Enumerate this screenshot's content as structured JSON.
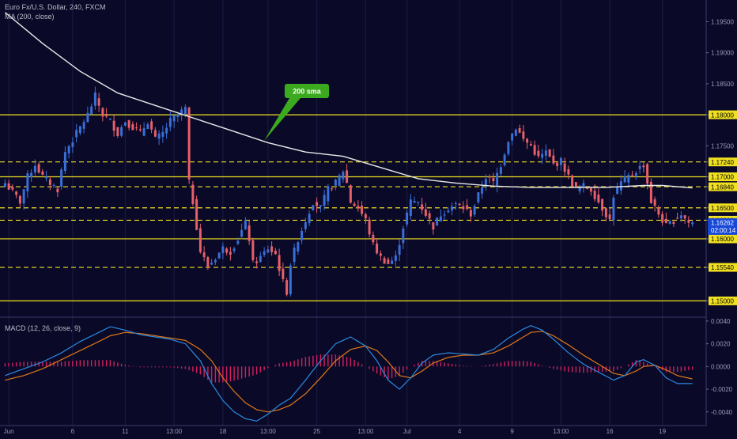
{
  "header": {
    "symbol_line": "Euro Fx/U.S. Dollar, 240, FXCM",
    "ma_line": "MA (200, close)",
    "macd_line": "MACD (12, 26, close, 9)"
  },
  "annotation": {
    "text": "200 sma",
    "color": "#3caa1e"
  },
  "colors": {
    "background": "#0a0a28",
    "up": "#3b6fd8",
    "down": "#e8606a",
    "level": "#f0e020",
    "ma": "#e8e8e8",
    "macd": "#2a8ae0",
    "signal": "#e07818",
    "hist": "#d02060",
    "price_tag": "#1848d8"
  },
  "current_price": {
    "value": "1.16262",
    "timer": "02:00:14"
  },
  "chart_data": [
    {
      "type": "candlestick",
      "title": "Euro Fx/U.S. Dollar, 240, FXCM",
      "ylim": [
        1.1475,
        1.1985
      ],
      "y_ticks": [
        "1.19500",
        "1.19000",
        "1.18500",
        "1.18000",
        "1.17500",
        "1.17240",
        "1.17000",
        "1.16840",
        "1.16500",
        "1.16300",
        "1.16000",
        "1.15540",
        "1.15000"
      ],
      "x_ticks": [
        {
          "label": "Jun",
          "i": 1
        },
        {
          "label": "6",
          "i": 18
        },
        {
          "label": "11",
          "i": 32
        },
        {
          "label": "13:00",
          "i": 45
        },
        {
          "label": "18",
          "i": 58
        },
        {
          "label": "13:00",
          "i": 70
        },
        {
          "label": "25",
          "i": 83
        },
        {
          "label": "13:00",
          "i": 96
        },
        {
          "label": "Jul",
          "i": 107
        },
        {
          "label": "4",
          "i": 121
        },
        {
          "label": "9",
          "i": 135
        },
        {
          "label": "13:00",
          "i": 148
        },
        {
          "label": "16",
          "i": 161
        },
        {
          "label": "19",
          "i": 175
        }
      ],
      "levels": [
        {
          "price": 1.18,
          "style": "solid"
        },
        {
          "price": 1.1724,
          "style": "dashed"
        },
        {
          "price": 1.17,
          "style": "solid"
        },
        {
          "price": 1.1684,
          "style": "dashed"
        },
        {
          "price": 1.165,
          "style": "dashed"
        },
        {
          "price": 1.163,
          "style": "dashed"
        },
        {
          "price": 1.16,
          "style": "solid"
        },
        {
          "price": 1.1554,
          "style": "dashed"
        },
        {
          "price": 1.15,
          "style": "solid"
        }
      ],
      "close_path": [
        [
          0,
          1.169
        ],
        [
          4,
          1.166
        ],
        [
          6,
          1.17
        ],
        [
          8,
          1.172
        ],
        [
          10,
          1.17
        ],
        [
          12,
          1.169
        ],
        [
          14,
          1.168
        ],
        [
          16,
          1.174
        ],
        [
          18,
          1.176
        ],
        [
          20,
          1.178
        ],
        [
          22,
          1.18
        ],
        [
          24,
          1.183
        ],
        [
          26,
          1.18
        ],
        [
          28,
          1.179
        ],
        [
          30,
          1.177
        ],
        [
          32,
          1.179
        ],
        [
          34,
          1.178
        ],
        [
          36,
          1.177
        ],
        [
          38,
          1.179
        ],
        [
          40,
          1.176
        ],
        [
          42,
          1.177
        ],
        [
          44,
          1.179
        ],
        [
          46,
          1.18
        ],
        [
          48,
          1.181
        ],
        [
          49,
          1.169
        ],
        [
          50,
          1.166
        ],
        [
          52,
          1.158
        ],
        [
          54,
          1.1555
        ],
        [
          56,
          1.157
        ],
        [
          58,
          1.1585
        ],
        [
          60,
          1.158
        ],
        [
          62,
          1.16
        ],
        [
          64,
          1.1625
        ],
        [
          65,
          1.16
        ],
        [
          66,
          1.156
        ],
        [
          68,
          1.157
        ],
        [
          70,
          1.1585
        ],
        [
          72,
          1.1575
        ],
        [
          74,
          1.153
        ],
        [
          75,
          1.1515
        ],
        [
          76,
          1.156
        ],
        [
          78,
          1.16
        ],
        [
          80,
          1.163
        ],
        [
          82,
          1.166
        ],
        [
          84,
          1.165
        ],
        [
          86,
          1.168
        ],
        [
          88,
          1.169
        ],
        [
          90,
          1.171
        ],
        [
          91,
          1.169
        ],
        [
          92,
          1.166
        ],
        [
          94,
          1.165
        ],
        [
          96,
          1.163
        ],
        [
          98,
          1.159
        ],
        [
          100,
          1.157
        ],
        [
          102,
          1.156
        ],
        [
          104,
          1.157
        ],
        [
          106,
          1.162
        ],
        [
          108,
          1.166
        ],
        [
          110,
          1.166
        ],
        [
          112,
          1.164
        ],
        [
          114,
          1.162
        ],
        [
          116,
          1.164
        ],
        [
          118,
          1.165
        ],
        [
          120,
          1.1655
        ],
        [
          122,
          1.165
        ],
        [
          124,
          1.164
        ],
        [
          126,
          1.167
        ],
        [
          128,
          1.17
        ],
        [
          130,
          1.169
        ],
        [
          132,
          1.172
        ],
        [
          134,
          1.176
        ],
        [
          136,
          1.178
        ],
        [
          138,
          1.176
        ],
        [
          140,
          1.175
        ],
        [
          142,
          1.173
        ],
        [
          144,
          1.174
        ],
        [
          146,
          1.172
        ],
        [
          148,
          1.1725
        ],
        [
          150,
          1.17
        ],
        [
          152,
          1.168
        ],
        [
          154,
          1.1685
        ],
        [
          156,
          1.168
        ],
        [
          158,
          1.166
        ],
        [
          160,
          1.164
        ],
        [
          161,
          1.163
        ],
        [
          162,
          1.167
        ],
        [
          164,
          1.169
        ],
        [
          166,
          1.17
        ],
        [
          168,
          1.171
        ],
        [
          170,
          1.172
        ],
        [
          171,
          1.169
        ],
        [
          172,
          1.166
        ],
        [
          174,
          1.164
        ],
        [
          176,
          1.162
        ],
        [
          178,
          1.163
        ],
        [
          180,
          1.164
        ],
        [
          182,
          1.1626
        ]
      ],
      "series": [
        {
          "name": "MA (200, close)",
          "type": "line",
          "points": [
            [
              0,
              1.1965
            ],
            [
              10,
              1.1915
            ],
            [
              20,
              1.187
            ],
            [
              30,
              1.1835
            ],
            [
              40,
              1.1815
            ],
            [
              50,
              1.1795
            ],
            [
              60,
              1.1775
            ],
            [
              70,
              1.1755
            ],
            [
              80,
              1.174
            ],
            [
              90,
              1.1733
            ],
            [
              100,
              1.1715
            ],
            [
              110,
              1.1697
            ],
            [
              120,
              1.169
            ],
            [
              130,
              1.1685
            ],
            [
              140,
              1.1683
            ],
            [
              150,
              1.1683
            ],
            [
              160,
              1.1683
            ],
            [
              170,
              1.1686
            ],
            [
              175,
              1.1686
            ],
            [
              183,
              1.1682
            ]
          ]
        }
      ]
    },
    {
      "type": "line",
      "title": "MACD (12, 26, close, 9)",
      "ylim": [
        -0.0052,
        0.0042
      ],
      "y_ticks": [
        "0.0040",
        "0.0020",
        "0.0000",
        "-0.0020",
        "-0.0040"
      ],
      "series": [
        {
          "name": "MACD",
          "points": [
            [
              0,
              -0.0008
            ],
            [
              5,
              -0.0002
            ],
            [
              10,
              0.0004
            ],
            [
              15,
              0.0012
            ],
            [
              20,
              0.0022
            ],
            [
              25,
              0.003
            ],
            [
              28,
              0.0035
            ],
            [
              32,
              0.0032
            ],
            [
              36,
              0.0028
            ],
            [
              40,
              0.0026
            ],
            [
              44,
              0.0024
            ],
            [
              48,
              0.002
            ],
            [
              52,
              0.0005
            ],
            [
              55,
              -0.0015
            ],
            [
              58,
              -0.003
            ],
            [
              61,
              -0.004
            ],
            [
              64,
              -0.0046
            ],
            [
              67,
              -0.0048
            ],
            [
              70,
              -0.0042
            ],
            [
              73,
              -0.0034
            ],
            [
              76,
              -0.0028
            ],
            [
              80,
              -0.0012
            ],
            [
              84,
              0.0005
            ],
            [
              88,
              0.002
            ],
            [
              92,
              0.0026
            ],
            [
              96,
              0.0018
            ],
            [
              99,
              0.0005
            ],
            [
              102,
              -0.0012
            ],
            [
              105,
              -0.002
            ],
            [
              108,
              -0.001
            ],
            [
              111,
              0.0003
            ],
            [
              114,
              0.001
            ],
            [
              118,
              0.0012
            ],
            [
              122,
              0.0011
            ],
            [
              126,
              0.001
            ],
            [
              130,
              0.0015
            ],
            [
              134,
              0.0025
            ],
            [
              138,
              0.0033
            ],
            [
              140,
              0.0036
            ],
            [
              143,
              0.0032
            ],
            [
              146,
              0.0024
            ],
            [
              150,
              0.0012
            ],
            [
              154,
              0.0002
            ],
            [
              158,
              -0.0005
            ],
            [
              162,
              -0.0012
            ],
            [
              165,
              -0.0008
            ],
            [
              168,
              0.0004
            ],
            [
              170,
              0.0006
            ],
            [
              173,
              0.0001
            ],
            [
              176,
              -0.001
            ],
            [
              179,
              -0.0015
            ],
            [
              183,
              -0.0015
            ]
          ]
        },
        {
          "name": "Signal",
          "points": [
            [
              0,
              -0.0012
            ],
            [
              5,
              -0.0008
            ],
            [
              10,
              -0.0002
            ],
            [
              15,
              0.0006
            ],
            [
              20,
              0.0014
            ],
            [
              25,
              0.0022
            ],
            [
              28,
              0.0027
            ],
            [
              32,
              0.003
            ],
            [
              36,
              0.0029
            ],
            [
              40,
              0.0027
            ],
            [
              44,
              0.0025
            ],
            [
              48,
              0.0023
            ],
            [
              52,
              0.0015
            ],
            [
              55,
              0.0005
            ],
            [
              58,
              -0.001
            ],
            [
              61,
              -0.0022
            ],
            [
              64,
              -0.0032
            ],
            [
              67,
              -0.0038
            ],
            [
              70,
              -0.004
            ],
            [
              73,
              -0.0038
            ],
            [
              76,
              -0.0034
            ],
            [
              80,
              -0.0024
            ],
            [
              84,
              -0.001
            ],
            [
              88,
              0.0005
            ],
            [
              92,
              0.0015
            ],
            [
              96,
              0.0018
            ],
            [
              99,
              0.0014
            ],
            [
              102,
              0.0004
            ],
            [
              105,
              -0.0008
            ],
            [
              108,
              -0.001
            ],
            [
              111,
              -0.0004
            ],
            [
              114,
              0.0003
            ],
            [
              118,
              0.0008
            ],
            [
              122,
              0.001
            ],
            [
              126,
              0.001
            ],
            [
              130,
              0.0012
            ],
            [
              134,
              0.0018
            ],
            [
              138,
              0.0026
            ],
            [
              140,
              0.003
            ],
            [
              143,
              0.0031
            ],
            [
              146,
              0.0027
            ],
            [
              150,
              0.0019
            ],
            [
              154,
              0.001
            ],
            [
              158,
              0.0002
            ],
            [
              162,
              -0.0006
            ],
            [
              165,
              -0.0008
            ],
            [
              168,
              -0.0004
            ],
            [
              170,
              0.0
            ],
            [
              173,
              0.0001
            ],
            [
              176,
              -0.0003
            ],
            [
              179,
              -0.0008
            ],
            [
              183,
              -0.0011
            ]
          ]
        }
      ]
    }
  ]
}
